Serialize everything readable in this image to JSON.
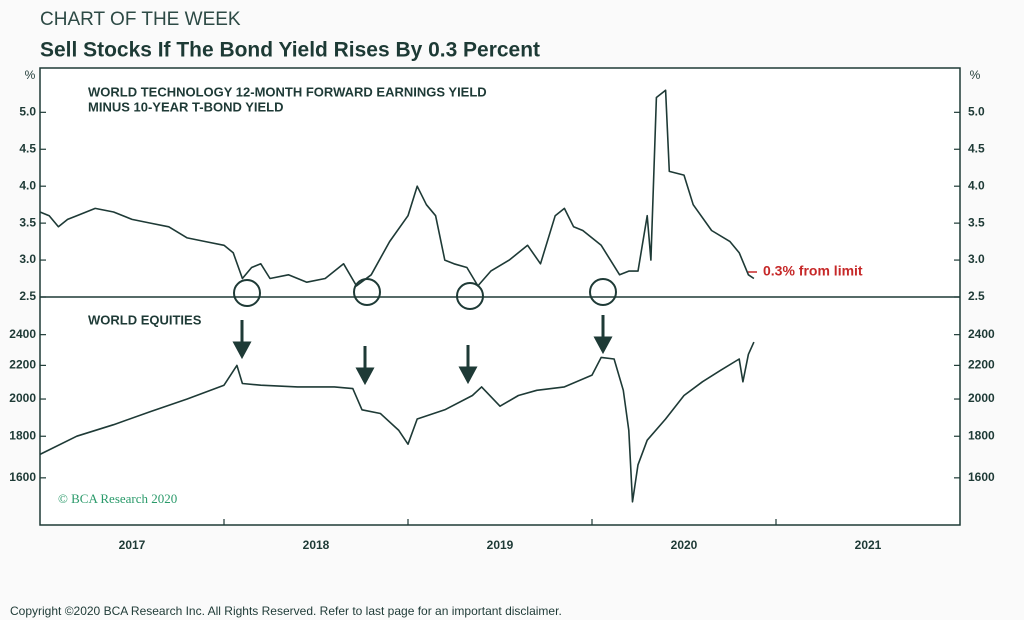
{
  "header": {
    "kicker": "CHART OF THE WEEK",
    "title": "Sell Stocks If The Bond Yield Rises By 0.3 Percent"
  },
  "chart_data": [
    {
      "type": "line",
      "title": "WORLD TECHNOLOGY 12-MONTH FORWARD EARNINGS YIELD",
      "subtitle": "MINUS 10-YEAR T-BOND YIELD",
      "y_unit": "%",
      "annotation": "0.3% from limit",
      "color": "#1e3a36",
      "xlim": [
        2017,
        2022
      ],
      "ylim": [
        2.5,
        5.6
      ],
      "yticks": [
        2.5,
        {
          "value": 3.0,
          "label": "3.0"
        },
        3.5,
        {
          "value": 4.0,
          "label": "4.0"
        },
        4.5,
        {
          "value": 5.0,
          "label": "5.0"
        }
      ],
      "x": [
        2017.0,
        2017.05,
        2017.1,
        2017.15,
        2017.2,
        2017.3,
        2017.4,
        2017.5,
        2017.6,
        2017.7,
        2017.8,
        2017.9,
        2018.0,
        2018.05,
        2018.1,
        2018.15,
        2018.2,
        2018.25,
        2018.35,
        2018.45,
        2018.55,
        2018.65,
        2018.72,
        2018.8,
        2018.9,
        2019.0,
        2019.05,
        2019.1,
        2019.15,
        2019.2,
        2019.25,
        2019.32,
        2019.38,
        2019.45,
        2019.55,
        2019.65,
        2019.72,
        2019.8,
        2019.85,
        2019.9,
        2019.95,
        2020.0,
        2020.05,
        2020.1,
        2020.15,
        2020.2,
        2020.25,
        2020.3,
        2020.32,
        2020.35,
        2020.4,
        2020.42,
        2020.5,
        2020.55,
        2020.65,
        2020.75,
        2020.8,
        2020.85,
        2020.88
      ],
      "values": [
        3.65,
        3.6,
        3.45,
        3.55,
        3.6,
        3.7,
        3.65,
        3.55,
        3.5,
        3.45,
        3.3,
        3.25,
        3.2,
        3.1,
        2.75,
        2.9,
        2.95,
        2.75,
        2.8,
        2.7,
        2.75,
        2.95,
        2.65,
        2.8,
        3.25,
        3.6,
        4.0,
        3.75,
        3.6,
        3.0,
        2.95,
        2.9,
        2.65,
        2.85,
        3.0,
        3.2,
        2.95,
        3.6,
        3.7,
        3.45,
        3.4,
        3.3,
        3.2,
        3.0,
        2.8,
        2.85,
        2.85,
        3.6,
        3.0,
        5.2,
        5.3,
        4.2,
        4.15,
        3.75,
        3.4,
        3.25,
        3.1,
        2.8,
        2.75
      ]
    },
    {
      "type": "line",
      "title": "WORLD EQUITIES",
      "annotation": "© BCA Research 2020",
      "color": "#1e3a36",
      "ylog": true,
      "xlim": [
        2017,
        2022
      ],
      "ylim": [
        1400,
        2670
      ],
      "yticks": [
        1600,
        1800,
        2000,
        2200,
        2400
      ],
      "xticks": [
        {
          "value": 2017.5,
          "label": "2017"
        },
        {
          "value": 2018.5,
          "label": "2018"
        },
        {
          "value": 2019.5,
          "label": "2019"
        },
        {
          "value": 2020.5,
          "label": "2020"
        },
        {
          "value": 2021.5,
          "label": "2021"
        }
      ],
      "xticks_minor": [
        2018,
        2019,
        2020,
        2021
      ],
      "x": [
        2017.0,
        2017.2,
        2017.4,
        2017.6,
        2017.8,
        2018.0,
        2018.07,
        2018.1,
        2018.2,
        2018.4,
        2018.6,
        2018.7,
        2018.75,
        2018.85,
        2018.95,
        2019.0,
        2019.05,
        2019.2,
        2019.35,
        2019.4,
        2019.5,
        2019.6,
        2019.7,
        2019.85,
        2020.0,
        2020.05,
        2020.12,
        2020.17,
        2020.2,
        2020.22,
        2020.25,
        2020.3,
        2020.4,
        2020.5,
        2020.6,
        2020.7,
        2020.8,
        2020.82,
        2020.85,
        2020.88
      ],
      "values": [
        1710,
        1800,
        1860,
        1930,
        2000,
        2080,
        2200,
        2090,
        2080,
        2070,
        2070,
        2060,
        1940,
        1920,
        1830,
        1760,
        1890,
        1940,
        2020,
        2070,
        1960,
        2020,
        2050,
        2070,
        2140,
        2250,
        2240,
        2050,
        1830,
        1495,
        1660,
        1780,
        1890,
        2020,
        2100,
        2170,
        2240,
        2100,
        2270,
        2350
      ]
    }
  ],
  "footer": "Copyright ©2020 BCA Research Inc. All Rights Reserved. Refer to last page for an important disclaimer."
}
